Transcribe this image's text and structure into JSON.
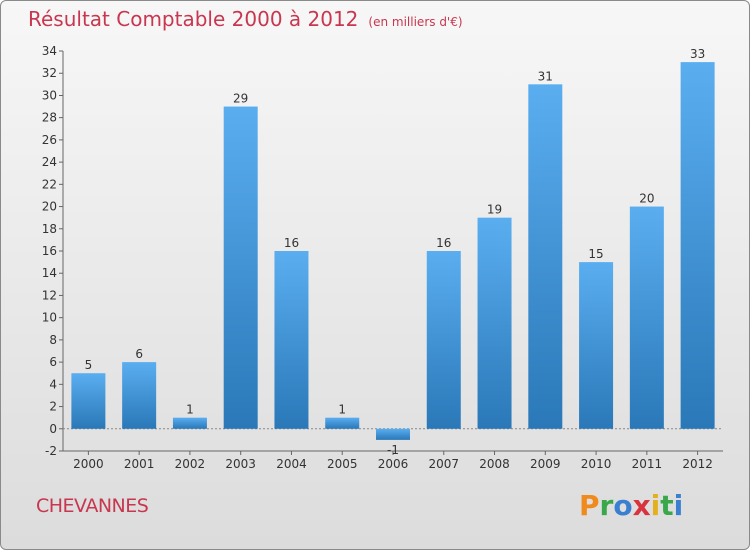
{
  "header": {
    "title": "Résultat Comptable 2000 à 2012",
    "unit": "(en milliers d'€)"
  },
  "footer": {
    "town": "CHEVANNES",
    "logo": "Proxiti"
  },
  "colors": {
    "title": "#c8374f",
    "bar_top": "#5aaef0",
    "bar_bottom": "#2a78b8",
    "logo_letters": [
      "#f08a1c",
      "#3aa84a",
      "#3a7fd0",
      "#d8343f",
      "#e5b020",
      "#3aa84a",
      "#3a7fd0"
    ]
  },
  "chart_data": {
    "type": "bar",
    "title": "Résultat Comptable 2000 à 2012",
    "subtitle": "(en milliers d'€)",
    "categories": [
      "2000",
      "2001",
      "2002",
      "2003",
      "2004",
      "2005",
      "2006",
      "2007",
      "2008",
      "2009",
      "2010",
      "2011",
      "2012"
    ],
    "values": [
      5,
      6,
      1,
      29,
      16,
      1,
      -1,
      16,
      19,
      31,
      15,
      20,
      33
    ],
    "data_labels": [
      "5",
      "6",
      "1",
      "29",
      "16",
      "1",
      "-1",
      "16",
      "19",
      "31",
      "15",
      "20",
      "33"
    ],
    "ylim": [
      -2,
      34
    ],
    "yticks": [
      -2,
      0,
      2,
      4,
      6,
      8,
      10,
      12,
      14,
      16,
      18,
      20,
      22,
      24,
      26,
      28,
      30,
      32,
      34
    ],
    "grid": false,
    "legend": "none"
  }
}
